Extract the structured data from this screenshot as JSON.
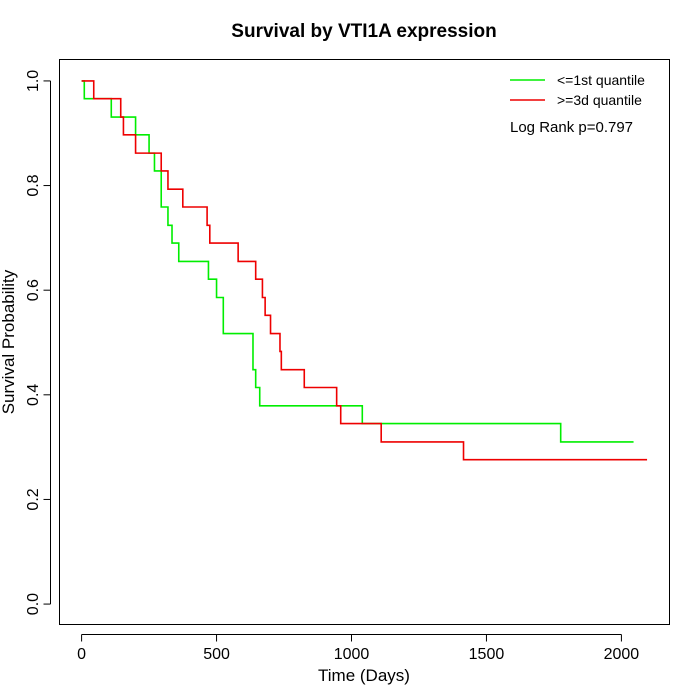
{
  "chart_data": {
    "type": "line",
    "title": "Survival by VTI1A expression",
    "xlabel": "Time (Days)",
    "ylabel": "Survival Probability",
    "xlim": [
      -80,
      2180
    ],
    "ylim": [
      -0.04,
      1.04
    ],
    "xticks": [
      0,
      500,
      1000,
      1500,
      2000
    ],
    "yticks": [
      0.0,
      0.2,
      0.4,
      0.6,
      0.8,
      1.0
    ],
    "xtick_labels": [
      "0",
      "500",
      "1000",
      "1500",
      "2000"
    ],
    "ytick_labels": [
      "0.0",
      "0.2",
      "0.4",
      "0.6",
      "0.8",
      "1.0"
    ],
    "grid": false,
    "legend_position": "top-right",
    "annotation": "Log Rank p=0.797",
    "series": [
      {
        "name": "<=1st quantile",
        "color": "#00ee00",
        "step": true,
        "points": [
          [
            0,
            1.0
          ],
          [
            10,
            0.966
          ],
          [
            110,
            0.931
          ],
          [
            200,
            0.897
          ],
          [
            250,
            0.862
          ],
          [
            270,
            0.828
          ],
          [
            295,
            0.759
          ],
          [
            320,
            0.724
          ],
          [
            335,
            0.69
          ],
          [
            360,
            0.655
          ],
          [
            470,
            0.621
          ],
          [
            500,
            0.586
          ],
          [
            525,
            0.517
          ],
          [
            635,
            0.448
          ],
          [
            645,
            0.414
          ],
          [
            660,
            0.379
          ],
          [
            1040,
            0.345
          ],
          [
            1775,
            0.31
          ],
          [
            2045,
            0.31
          ]
        ]
      },
      {
        "name": ">=3d quantile",
        "color": "#ee0000",
        "step": true,
        "points": [
          [
            0,
            1.0
          ],
          [
            45,
            0.966
          ],
          [
            145,
            0.931
          ],
          [
            155,
            0.897
          ],
          [
            200,
            0.862
          ],
          [
            295,
            0.828
          ],
          [
            320,
            0.793
          ],
          [
            375,
            0.759
          ],
          [
            465,
            0.724
          ],
          [
            475,
            0.69
          ],
          [
            580,
            0.655
          ],
          [
            645,
            0.621
          ],
          [
            670,
            0.586
          ],
          [
            680,
            0.552
          ],
          [
            700,
            0.517
          ],
          [
            735,
            0.483
          ],
          [
            740,
            0.448
          ],
          [
            825,
            0.414
          ],
          [
            945,
            0.379
          ],
          [
            960,
            0.345
          ],
          [
            1110,
            0.31
          ],
          [
            1415,
            0.276
          ],
          [
            2095,
            0.276
          ]
        ]
      }
    ]
  }
}
